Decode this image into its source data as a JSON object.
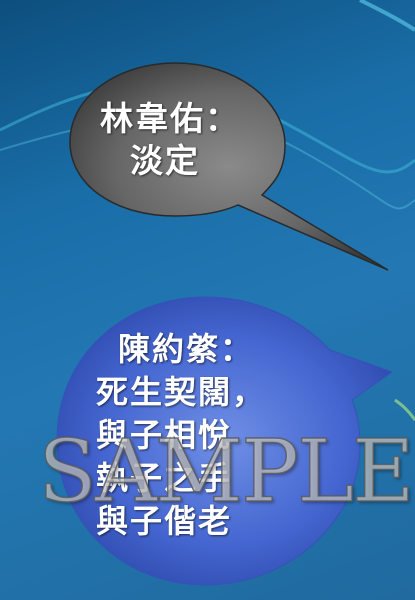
{
  "quote_1": {
    "speaker_line": "林韋佑：",
    "text_line": "淡定"
  },
  "quote_2": {
    "lines": [
      "陳約綮：",
      "死生契闊，",
      "與子相悅",
      "執子之手",
      "與子偕老"
    ]
  },
  "watermark": "SAMPLE",
  "colors": {
    "background": "#2378b3",
    "bubble_1": "#5a5a5a",
    "bubble_2": "#3f63c8",
    "text": "#ffffff"
  }
}
